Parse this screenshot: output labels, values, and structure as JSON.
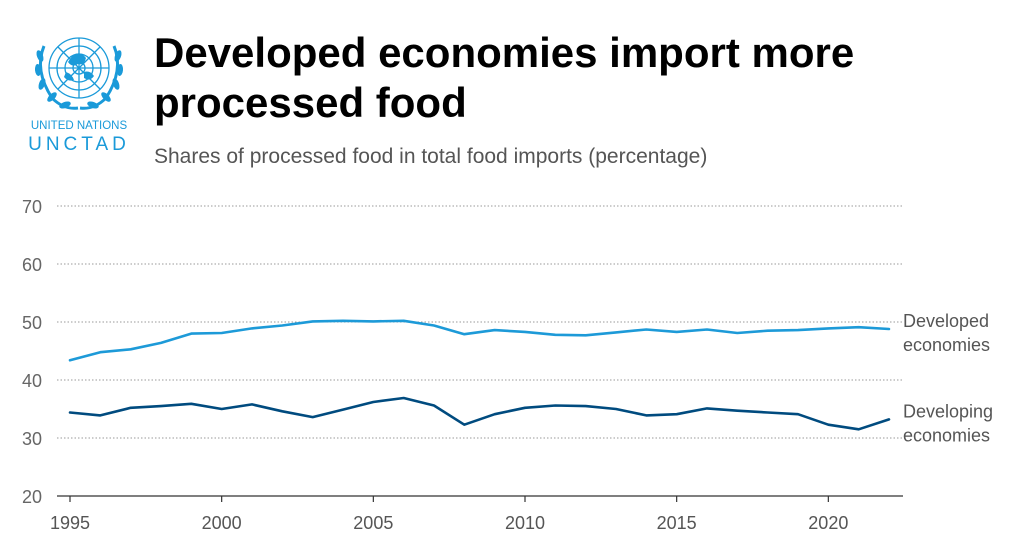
{
  "logo": {
    "org_name": "UNITED NATIONS",
    "unit_name": "UNCTAD",
    "emblem_icon": "un-emblem-icon",
    "color": "#1a9ad9"
  },
  "header": {
    "title": "Developed economies import more processed food",
    "subtitle": "Shares of processed food in total food imports (percentage)"
  },
  "chart_data": {
    "type": "line",
    "title": "Developed economies import more processed food",
    "subtitle": "Shares of processed food in total food imports (percentage)",
    "xlabel": "",
    "ylabel": "",
    "x": [
      1995,
      1996,
      1997,
      1998,
      1999,
      2000,
      2001,
      2002,
      2003,
      2004,
      2005,
      2006,
      2007,
      2008,
      2009,
      2010,
      2011,
      2012,
      2013,
      2014,
      2015,
      2016,
      2017,
      2018,
      2019,
      2020,
      2021,
      2022
    ],
    "xlim": [
      1995,
      2022
    ],
    "ylim": [
      20,
      70
    ],
    "xticks": [
      1995,
      2000,
      2005,
      2010,
      2015,
      2020
    ],
    "yticks": [
      20,
      30,
      40,
      50,
      60,
      70
    ],
    "grid": true,
    "legend": "direct-labels-right",
    "series": [
      {
        "name": "Developed economies",
        "label_lines": [
          "Developed",
          "economies"
        ],
        "color": "#1d9ad8",
        "values": [
          43.4,
          44.8,
          45.3,
          46.4,
          48.0,
          48.1,
          48.9,
          49.4,
          50.1,
          50.2,
          50.1,
          50.2,
          49.4,
          47.9,
          48.6,
          48.3,
          47.8,
          47.7,
          48.2,
          48.7,
          48.3,
          48.7,
          48.1,
          48.5,
          48.6,
          48.9,
          49.1,
          48.8
        ]
      },
      {
        "name": "Developing economies",
        "label_lines": [
          "Developing",
          "economies"
        ],
        "color": "#004b7f",
        "values": [
          34.4,
          33.9,
          35.2,
          35.5,
          35.9,
          35.0,
          35.8,
          34.6,
          33.6,
          34.9,
          36.2,
          36.9,
          35.6,
          32.3,
          34.1,
          35.2,
          35.6,
          35.5,
          35.0,
          33.9,
          34.1,
          35.1,
          34.7,
          34.4,
          34.1,
          32.3,
          31.5,
          33.2
        ]
      }
    ]
  }
}
